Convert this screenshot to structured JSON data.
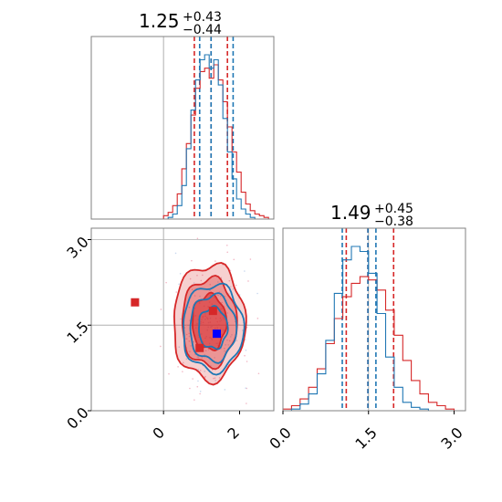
{
  "chart_data": {
    "type": "corner",
    "parameters": [
      "",
      ""
    ],
    "colors": {
      "series_a": "#d62728",
      "series_b": "#1f77b4",
      "truth": "#0000ff",
      "grid": "#b0b0b0"
    },
    "titles": [
      {
        "value": "1.25",
        "plus": "+0.43",
        "minus": "−0.44"
      },
      {
        "value": "1.49",
        "plus": "+0.45",
        "minus": "−0.38"
      }
    ],
    "ticks": {
      "x_param1": [
        {
          "value": 0,
          "label": "0"
        },
        {
          "value": 2,
          "label": "2"
        }
      ],
      "y_param2": [
        {
          "value": 0.0,
          "label": "0.0"
        },
        {
          "value": 1.5,
          "label": "1.5"
        },
        {
          "value": 3.0,
          "label": "3.0"
        }
      ],
      "x_param2": [
        {
          "value": 0.0,
          "label": "0.0"
        },
        {
          "value": 1.5,
          "label": "1.5"
        },
        {
          "value": 3.0,
          "label": "3.0"
        }
      ]
    },
    "ranges": {
      "param1": [
        -1.9,
        2.9
      ],
      "param2": [
        0.0,
        3.2
      ]
    },
    "reference_lines": {
      "param1": 0,
      "param2": 1.5
    },
    "histograms": {
      "param1": {
        "bins": [
          0.0,
          0.12,
          0.24,
          0.36,
          0.48,
          0.6,
          0.72,
          0.84,
          0.96,
          1.08,
          1.2,
          1.32,
          1.44,
          1.56,
          1.68,
          1.8,
          1.92,
          2.04,
          2.16,
          2.28,
          2.4,
          2.52,
          2.64,
          2.76
        ],
        "series_a": [
          0.02,
          0.04,
          0.08,
          0.15,
          0.3,
          0.45,
          0.62,
          0.78,
          0.88,
          0.9,
          0.84,
          0.92,
          0.83,
          0.7,
          0.55,
          0.4,
          0.28,
          0.16,
          0.09,
          0.05,
          0.03,
          0.02,
          0.01
        ],
        "series_b": [
          0.0,
          0.01,
          0.03,
          0.08,
          0.2,
          0.42,
          0.65,
          0.83,
          0.95,
          0.98,
          0.9,
          0.95,
          0.8,
          0.6,
          0.4,
          0.24,
          0.12,
          0.06,
          0.03,
          0.01,
          0.0,
          0.0,
          0.0
        ],
        "quantiles_a": [
          0.81,
          1.25,
          1.68
        ],
        "quantiles_b": [
          0.95,
          1.25,
          1.83
        ]
      },
      "param2": {
        "bins": [
          0.0,
          0.15,
          0.3,
          0.45,
          0.6,
          0.75,
          0.9,
          1.05,
          1.2,
          1.35,
          1.5,
          1.65,
          1.8,
          1.95,
          2.1,
          2.25,
          2.4,
          2.55,
          2.7,
          2.85,
          3.0
        ],
        "series_a": [
          0.01,
          0.03,
          0.07,
          0.14,
          0.25,
          0.4,
          0.55,
          0.68,
          0.76,
          0.8,
          0.78,
          0.72,
          0.6,
          0.45,
          0.3,
          0.18,
          0.1,
          0.05,
          0.03,
          0.01
        ],
        "series_b": [
          0.0,
          0.01,
          0.04,
          0.1,
          0.22,
          0.42,
          0.7,
          0.9,
          0.98,
          0.95,
          0.82,
          0.58,
          0.32,
          0.14,
          0.05,
          0.02,
          0.01,
          0.0,
          0.0,
          0.0
        ],
        "quantiles_a": [
          1.11,
          1.49,
          1.94
        ],
        "quantiles_b": [
          1.04,
          1.49,
          1.63
        ]
      }
    },
    "joint": {
      "series_a": {
        "center": [
          1.2,
          1.55
        ],
        "sigma": [
          0.45,
          0.48
        ],
        "levels": [
          1.0,
          1.6,
          2.1
        ]
      },
      "series_b": {
        "center": [
          1.3,
          1.45
        ],
        "sigma": [
          0.38,
          0.36
        ],
        "levels": [
          1.0,
          1.6,
          2.1
        ]
      },
      "markers_a": [
        {
          "x": -0.75,
          "y": 1.9
        },
        {
          "x": 1.3,
          "y": 1.75
        },
        {
          "x": 0.95,
          "y": 1.1
        }
      ],
      "marker_b": {
        "x": 1.4,
        "y": 1.35
      }
    }
  }
}
